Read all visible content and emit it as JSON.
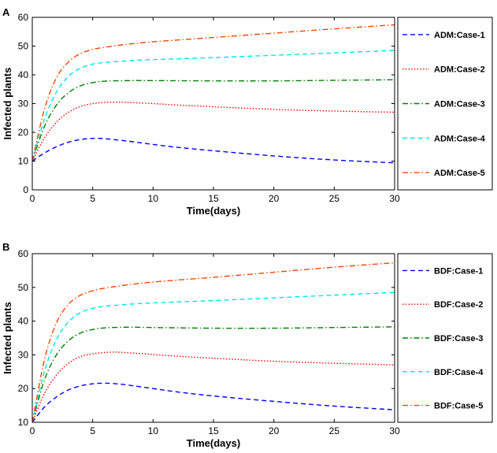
{
  "chart_data": [
    {
      "type": "line",
      "panel_label": "A",
      "xlabel": "Time(days)",
      "ylabel": "Infected plants",
      "xlim": [
        0,
        30
      ],
      "ylim": [
        0,
        60
      ],
      "xticks": [
        0,
        5,
        10,
        15,
        20,
        25,
        30
      ],
      "yticks": [
        0,
        10,
        20,
        30,
        40,
        50,
        60
      ],
      "legend_position": "right-outside",
      "series": [
        {
          "name": "ADM:Case-1",
          "color": "#0000ff",
          "dash": "dashed",
          "x": [
            0,
            1,
            2,
            3,
            4,
            5,
            6,
            8,
            10,
            12,
            15,
            20,
            25,
            30
          ],
          "y": [
            10,
            12.8,
            15,
            16.6,
            17.5,
            17.9,
            17.8,
            16.9,
            15.8,
            14.8,
            13.6,
            11.8,
            10.4,
            9.4
          ]
        },
        {
          "name": "ADM:Case-2",
          "color": "#ff0000",
          "dash": "dotted",
          "x": [
            0,
            1,
            2,
            3,
            4,
            5,
            6,
            7,
            8,
            10,
            12,
            15,
            20,
            25,
            30
          ],
          "y": [
            10,
            18,
            23.5,
            27,
            29,
            30,
            30.4,
            30.5,
            30.4,
            30,
            29.5,
            28.9,
            28,
            27.4,
            27
          ]
        },
        {
          "name": "ADM:Case-3",
          "color": "#008000",
          "dash": "dashdot",
          "x": [
            0,
            1,
            2,
            3,
            4,
            5,
            6,
            8,
            10,
            15,
            20,
            25,
            30
          ],
          "y": [
            10,
            22,
            29.5,
            33.8,
            36.2,
            37.3,
            37.8,
            38,
            38,
            37.9,
            37.9,
            38.1,
            38.3
          ]
        },
        {
          "name": "ADM:Case-4",
          "color": "#00e5ee",
          "dash": "dashed",
          "x": [
            0,
            1,
            2,
            3,
            4,
            5,
            6,
            8,
            10,
            15,
            20,
            25,
            30
          ],
          "y": [
            10,
            24.5,
            34,
            39.5,
            42.3,
            43.7,
            44.3,
            44.9,
            45.3,
            46,
            46.8,
            47.6,
            48.5
          ]
        },
        {
          "name": "ADM:Case-5",
          "color": "#ff4500",
          "dash": "dashdot",
          "x": [
            0,
            1,
            2,
            3,
            4,
            5,
            6,
            8,
            10,
            15,
            20,
            25,
            30
          ],
          "y": [
            10,
            28,
            39,
            44.5,
            47.4,
            48.8,
            49.6,
            50.7,
            51.5,
            53,
            54.5,
            56,
            57.4
          ]
        }
      ]
    },
    {
      "type": "line",
      "panel_label": "B",
      "xlabel": "Time(days)",
      "ylabel": "Infected plants",
      "xlim": [
        0,
        30
      ],
      "ylim": [
        10,
        60
      ],
      "xticks": [
        0,
        5,
        10,
        15,
        20,
        25,
        30
      ],
      "yticks": [
        10,
        20,
        30,
        40,
        50,
        60
      ],
      "legend_position": "right-outside",
      "series": [
        {
          "name": "BDF:Case-1",
          "color": "#0000ff",
          "dash": "dashed",
          "x": [
            0,
            1,
            2,
            3,
            4,
            5,
            6,
            7,
            8,
            10,
            12,
            15,
            20,
            25,
            30
          ],
          "y": [
            10,
            14.5,
            17.5,
            19.6,
            20.8,
            21.4,
            21.6,
            21.4,
            21,
            20,
            19,
            17.8,
            16.2,
            14.8,
            13.7
          ]
        },
        {
          "name": "BDF:Case-2",
          "color": "#ff0000",
          "dash": "dotted",
          "x": [
            0,
            1,
            2,
            3,
            4,
            5,
            6,
            7,
            8,
            10,
            12,
            15,
            20,
            25,
            30
          ],
          "y": [
            10,
            18.5,
            24,
            27.5,
            29.5,
            30.3,
            30.7,
            30.8,
            30.6,
            30.1,
            29.6,
            29,
            28.1,
            27.5,
            27
          ]
        },
        {
          "name": "BDF:Case-3",
          "color": "#008000",
          "dash": "dashdot",
          "x": [
            0,
            1,
            2,
            3,
            4,
            5,
            6,
            8,
            10,
            15,
            20,
            25,
            30
          ],
          "y": [
            10,
            22.5,
            30,
            34.2,
            36.5,
            37.5,
            38,
            38.2,
            38.1,
            37.9,
            37.9,
            38.1,
            38.3
          ]
        },
        {
          "name": "BDF:Case-4",
          "color": "#00e5ee",
          "dash": "dashed",
          "x": [
            0,
            1,
            2,
            3,
            4,
            5,
            6,
            8,
            10,
            15,
            20,
            25,
            30
          ],
          "y": [
            10,
            25,
            34.5,
            39.8,
            42.5,
            43.8,
            44.4,
            45,
            45.4,
            46.1,
            46.9,
            47.7,
            48.5
          ]
        },
        {
          "name": "BDF:Case-5",
          "color": "#ff4500",
          "dash": "dashdot",
          "x": [
            0,
            1,
            2,
            3,
            4,
            5,
            6,
            8,
            10,
            15,
            20,
            25,
            30
          ],
          "y": [
            10,
            28.5,
            39.5,
            45,
            47.7,
            49,
            49.8,
            50.8,
            51.6,
            53,
            54.5,
            56,
            57.3
          ]
        }
      ]
    }
  ]
}
